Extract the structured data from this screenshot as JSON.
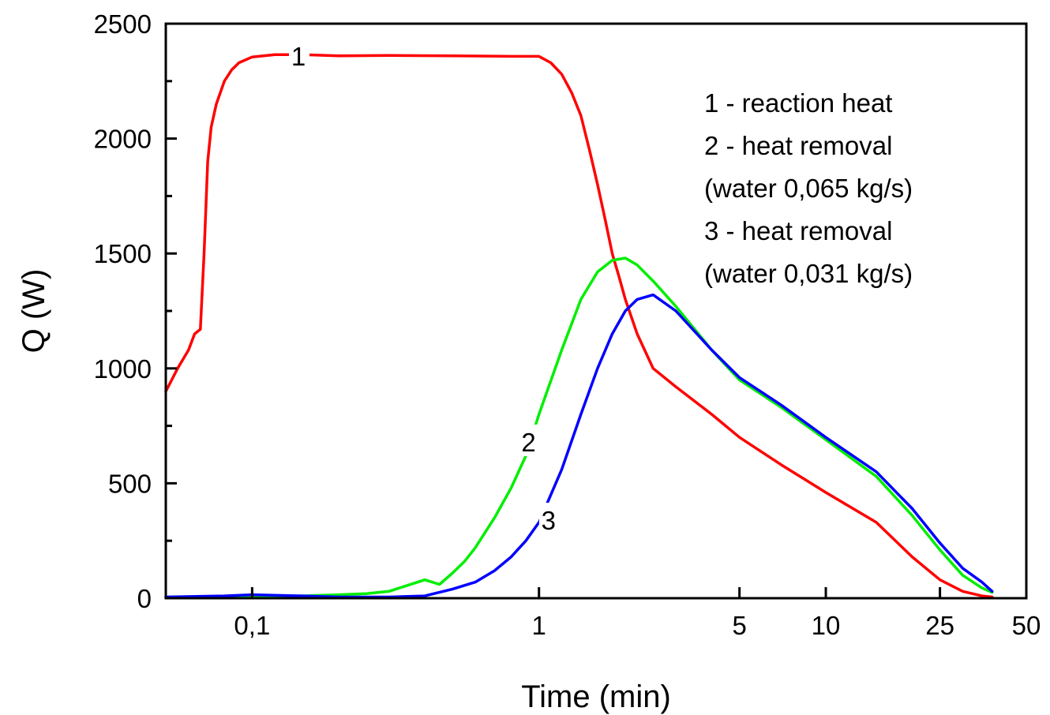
{
  "chart_data": {
    "type": "line",
    "xlabel": "Time (min)",
    "ylabel": "Q (W)",
    "xscale": "log",
    "xlim": [
      0.05,
      50
    ],
    "ylim": [
      0,
      2500
    ],
    "x_ticks": [
      {
        "value": 0.1,
        "label": "0,1"
      },
      {
        "value": 1,
        "label": "1"
      },
      {
        "value": 5,
        "label": "5"
      },
      {
        "value": 10,
        "label": "10"
      },
      {
        "value": 25,
        "label": "25"
      },
      {
        "value": 50,
        "label": "50"
      }
    ],
    "y_ticks": [
      {
        "value": 0,
        "label": "0"
      },
      {
        "value": 500,
        "label": "500"
      },
      {
        "value": 1000,
        "label": "1000"
      },
      {
        "value": 1500,
        "label": "1500"
      },
      {
        "value": 2000,
        "label": "2000"
      },
      {
        "value": 2500,
        "label": "2500"
      }
    ],
    "legend": {
      "placement": "top-right",
      "lines": [
        "1 - reaction heat",
        "2 - heat removal",
        "(water 0,065 kg/s)",
        "3 - heat removal",
        "(water 0,031 kg/s)"
      ]
    },
    "grid": false,
    "series": [
      {
        "name": "1",
        "color": "#ff0000",
        "label_at": {
          "x": 0.145,
          "y": 2360
        },
        "x": [
          0.05,
          0.055,
          0.06,
          0.063,
          0.066,
          0.068,
          0.07,
          0.072,
          0.075,
          0.08,
          0.085,
          0.09,
          0.1,
          0.12,
          0.15,
          0.2,
          0.3,
          0.5,
          0.8,
          1.0,
          1.1,
          1.2,
          1.3,
          1.4,
          1.5,
          1.6,
          1.7,
          1.8,
          1.9,
          2.0,
          2.2,
          2.5,
          3.0,
          4.0,
          5.0,
          7.0,
          10.0,
          15.0,
          20.0,
          25.0,
          30.0,
          35.0,
          38.0
        ],
        "y": [
          900,
          1000,
          1080,
          1150,
          1170,
          1500,
          1900,
          2050,
          2150,
          2250,
          2300,
          2330,
          2355,
          2365,
          2365,
          2360,
          2362,
          2360,
          2358,
          2358,
          2330,
          2280,
          2200,
          2100,
          1950,
          1800,
          1650,
          1500,
          1400,
          1300,
          1150,
          1000,
          920,
          800,
          700,
          580,
          460,
          330,
          180,
          80,
          30,
          10,
          5
        ]
      },
      {
        "name": "2",
        "color": "#00ee00",
        "label_at": {
          "x": 0.92,
          "y": 680
        },
        "x": [
          0.05,
          0.08,
          0.1,
          0.15,
          0.2,
          0.25,
          0.3,
          0.4,
          0.45,
          0.5,
          0.55,
          0.6,
          0.7,
          0.8,
          0.9,
          1.0,
          1.2,
          1.4,
          1.6,
          1.8,
          2.0,
          2.2,
          2.5,
          3.0,
          4.0,
          5.0,
          7.0,
          10.0,
          15.0,
          20.0,
          25.0,
          30.0,
          35.0,
          38.0
        ],
        "y": [
          5,
          8,
          10,
          10,
          15,
          20,
          30,
          80,
          60,
          110,
          160,
          220,
          350,
          480,
          620,
          800,
          1080,
          1300,
          1420,
          1470,
          1480,
          1450,
          1380,
          1270,
          1080,
          950,
          830,
          690,
          530,
          360,
          210,
          100,
          45,
          25
        ]
      },
      {
        "name": "3",
        "color": "#0000ff",
        "label_at": {
          "x": 1.08,
          "y": 340
        },
        "x": [
          0.05,
          0.08,
          0.1,
          0.15,
          0.2,
          0.3,
          0.4,
          0.5,
          0.6,
          0.7,
          0.8,
          0.9,
          1.0,
          1.2,
          1.4,
          1.6,
          1.8,
          2.0,
          2.2,
          2.5,
          3.0,
          4.0,
          5.0,
          7.0,
          10.0,
          15.0,
          20.0,
          25.0,
          30.0,
          35.0,
          38.0
        ],
        "y": [
          5,
          10,
          15,
          10,
          5,
          5,
          10,
          40,
          70,
          120,
          180,
          250,
          330,
          560,
          800,
          1000,
          1150,
          1250,
          1300,
          1320,
          1250,
          1080,
          960,
          840,
          700,
          550,
          390,
          240,
          130,
          70,
          30
        ]
      }
    ]
  }
}
